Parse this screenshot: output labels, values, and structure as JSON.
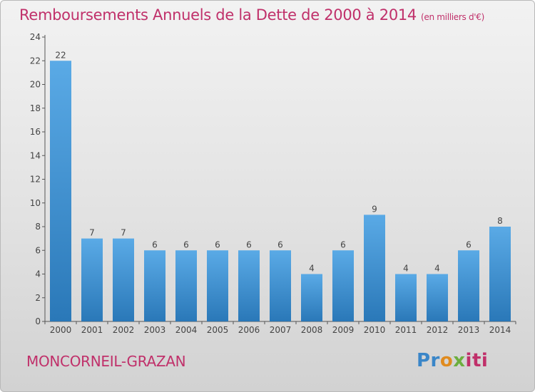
{
  "title": "Remboursements Annuels de la Dette de 2000 à 2014",
  "subtitle": "(en milliers d'€)",
  "commune": "MONCORNEIL-GRAZAN",
  "logo": {
    "p1": "Pr",
    "p2": "o",
    "p3": "x",
    "p4": "iti"
  },
  "colors": {
    "title": "#c0306a",
    "bar_top": "#5aaae6",
    "bar_bottom": "#2a78b8"
  },
  "chart_data": {
    "type": "bar",
    "categories": [
      "2000",
      "2001",
      "2002",
      "2003",
      "2004",
      "2005",
      "2006",
      "2007",
      "2008",
      "2009",
      "2010",
      "2011",
      "2012",
      "2013",
      "2014"
    ],
    "values": [
      22,
      7,
      7,
      6,
      6,
      6,
      6,
      6,
      4,
      6,
      9,
      4,
      4,
      6,
      8
    ],
    "title": "Remboursements Annuels de la Dette de 2000 à 2014",
    "xlabel": "",
    "ylabel": "",
    "ylim": [
      0,
      24
    ],
    "yticks": [
      0,
      2,
      4,
      6,
      8,
      10,
      12,
      14,
      16,
      18,
      20,
      22,
      24
    ],
    "grid": false,
    "data_labels": true
  }
}
